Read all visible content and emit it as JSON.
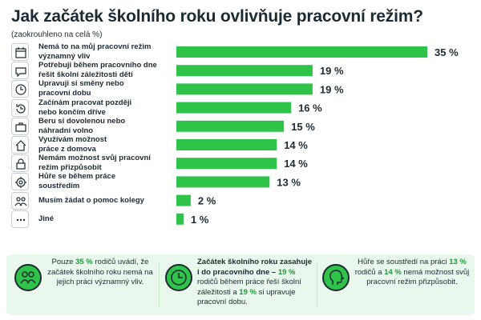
{
  "header": {
    "title": "Jak začátek školního roku ovlivňuje pracovní režim?",
    "subtitle": "(zaokrouhleno na celá %)"
  },
  "chart_data": {
    "type": "bar",
    "orientation": "horizontal",
    "title": "Jak začátek školního roku ovlivňuje pracovní režim?",
    "subtitle": "(zaokrouhleno na celá %)",
    "unit": "%",
    "bar_color": "#2fc34a",
    "categories": [
      "Nemá to na můj pracovní režim významný vliv",
      "Potřebuji během pracovního dne řešit školní záležitosti dětí",
      "Upravuji si směny nebo pracovní dobu",
      "Začínám pracovat později nebo končím dříve",
      "Beru si dovolenou nebo náhradní volno",
      "Využívám možnost práce z domova",
      "Nemám možnost svůj pracovní režim přizpůsobit",
      "Hůře se během práce soustředím",
      "Musím žádat o pomoc kolegy",
      "Jiné"
    ],
    "label_lines": [
      [
        "Nemá to na můj pracovní režim",
        "významný vliv"
      ],
      [
        "Potřebuji během pracovního dne",
        "řešit školní záležitosti dětí"
      ],
      [
        "Upravuji si směny nebo",
        "pracovní dobu"
      ],
      [
        "Začínám pracovat později",
        "nebo končím dříve"
      ],
      [
        "Beru si dovolenou nebo",
        "náhradní volno"
      ],
      [
        "Využívám možnost",
        "práce z domova"
      ],
      [
        "Nemám možnost svůj pracovní",
        "režim přizpůsobit"
      ],
      [
        "Hůře se během práce",
        "soustředím"
      ],
      [
        "Musím žádat o pomoc kolegy"
      ],
      [
        "Jiné"
      ]
    ],
    "values": [
      35,
      19,
      19,
      16,
      15,
      14,
      14,
      13,
      2,
      1
    ],
    "value_labels": [
      "35 %",
      "19 %",
      "19 %",
      "16 %",
      "15 %",
      "14 %",
      "14 %",
      "13 %",
      "2 %",
      "1 %"
    ],
    "icons": [
      "calendar-icon",
      "chat-icon",
      "clock-icon",
      "clock-back-icon",
      "briefcase-icon",
      "home-icon",
      "lock-icon",
      "target-icon",
      "people-icon",
      "dots-icon"
    ],
    "xlim": [
      0,
      35
    ],
    "grid": false,
    "legend": "none"
  },
  "footer": {
    "background": "#eaf7ec",
    "accent": "#1f9a3a",
    "cards": [
      {
        "icon": "people-icon",
        "parts": [
          {
            "t": "Pouze ",
            "s": ""
          },
          {
            "t": "35 %",
            "s": "g"
          },
          {
            "t": " rodičů uvádí, že začátek školního roku nemá na jejich práci významný vliv.",
            "s": ""
          }
        ]
      },
      {
        "icon": "clock-icon",
        "parts": [
          {
            "t": "Začátek školního roku zasahuje i do pracovního dne – ",
            "s": "b"
          },
          {
            "t": "19 %",
            "s": "g"
          },
          {
            "t": " rodičů během práce řeší školní záležitosti a ",
            "s": ""
          },
          {
            "t": "19 %",
            "s": "g"
          },
          {
            "t": " si upravuje pracovní dobu.",
            "s": ""
          }
        ]
      },
      {
        "icon": "head-icon",
        "parts": [
          {
            "t": "Hůře se soustředí na práci ",
            "s": ""
          },
          {
            "t": "13 %",
            "s": "g"
          },
          {
            "t": " rodičů a ",
            "s": ""
          },
          {
            "t": "14 %",
            "s": "g"
          },
          {
            "t": " nemá možnost svůj pracovní režim přizpůsobit.",
            "s": ""
          }
        ]
      }
    ]
  }
}
